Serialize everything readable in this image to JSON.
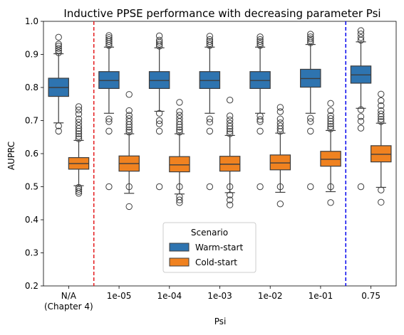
{
  "chart_data": {
    "type": "box",
    "title": "Inductive PPSE performance with decreasing parameter Psi",
    "xlabel": "Psi",
    "ylabel": "AUPRC",
    "ylim": [
      0.2,
      1.0
    ],
    "yticks": [
      "0.2",
      "0.3",
      "0.4",
      "0.5",
      "0.6",
      "0.7",
      "0.8",
      "0.9",
      "1.0"
    ],
    "categories": [
      {
        "line1": "N/A",
        "line2": "(Chapter 4)"
      },
      {
        "line1": "1e-05",
        "line2": ""
      },
      {
        "line1": "1e-04",
        "line2": ""
      },
      {
        "line1": "1e-03",
        "line2": ""
      },
      {
        "line1": "1e-02",
        "line2": ""
      },
      {
        "line1": "1e-01",
        "line2": ""
      },
      {
        "line1": "0.75",
        "line2": ""
      }
    ],
    "legend": {
      "title": "Scenario",
      "placement": "lower-center"
    },
    "series": [
      {
        "name": "Warm-start",
        "color": "#2e74b0",
        "boxes": [
          {
            "q1": 0.773,
            "median": 0.8,
            "q3": 0.828,
            "whislo": 0.693,
            "whishi": 0.902,
            "fliers_low": [
              0.684,
              0.668
            ],
            "fliers_high": [
              0.905,
              0.912,
              0.918,
              0.925,
              0.931,
              0.952
            ]
          },
          {
            "q1": 0.797,
            "median": 0.821,
            "q3": 0.848,
            "whislo": 0.722,
            "whishi": 0.922,
            "fliers_low": [
              0.705,
              0.697,
              0.668,
              0.5
            ],
            "fliers_high": [
              0.927,
              0.933,
              0.939,
              0.945,
              0.951,
              0.957
            ]
          },
          {
            "q1": 0.797,
            "median": 0.821,
            "q3": 0.848,
            "whislo": 0.728,
            "whishi": 0.92,
            "fliers_low": [
              0.722,
              0.7,
              0.69,
              0.668,
              0.5
            ],
            "fliers_high": [
              0.925,
              0.931,
              0.937,
              0.943,
              0.956
            ]
          },
          {
            "q1": 0.797,
            "median": 0.821,
            "q3": 0.848,
            "whislo": 0.722,
            "whishi": 0.922,
            "fliers_low": [
              0.705,
              0.695,
              0.668,
              0.5
            ],
            "fliers_high": [
              0.927,
              0.933,
              0.939,
              0.945,
              0.955
            ]
          },
          {
            "q1": 0.797,
            "median": 0.821,
            "q3": 0.848,
            "whislo": 0.722,
            "whishi": 0.922,
            "fliers_low": [
              0.714,
              0.703,
              0.697,
              0.668,
              0.5
            ],
            "fliers_high": [
              0.927,
              0.933,
              0.939,
              0.945,
              0.953
            ]
          },
          {
            "q1": 0.801,
            "median": 0.827,
            "q3": 0.855,
            "whislo": 0.722,
            "whishi": 0.93,
            "fliers_low": [
              0.707,
              0.697,
              0.668,
              0.5
            ],
            "fliers_high": [
              0.935,
              0.941,
              0.947,
              0.953,
              0.961
            ]
          },
          {
            "q1": 0.813,
            "median": 0.838,
            "q3": 0.865,
            "whislo": 0.737,
            "whishi": 0.938,
            "fliers_low": [
              0.733,
              0.712,
              0.698,
              0.677,
              0.5
            ],
            "fliers_high": [
              0.943,
              0.951,
              0.962,
              0.972
            ]
          }
        ]
      },
      {
        "name": "Cold-start",
        "color": "#f08220",
        "boxes": [
          {
            "q1": 0.553,
            "median": 0.57,
            "q3": 0.588,
            "whislo": 0.503,
            "whishi": 0.64,
            "fliers_low": [
              0.498,
              0.492,
              0.486,
              0.48
            ],
            "fliers_high": [
              0.645,
              0.652,
              0.66,
              0.668,
              0.676,
              0.685,
              0.695,
              0.705,
              0.72,
              0.732,
              0.742
            ]
          },
          {
            "q1": 0.547,
            "median": 0.57,
            "q3": 0.593,
            "whislo": 0.48,
            "whishi": 0.66,
            "fliers_low": [
              0.5,
              0.44
            ],
            "fliers_high": [
              0.665,
              0.672,
              0.68,
              0.688,
              0.697,
              0.706,
              0.716,
              0.73,
              0.779
            ]
          },
          {
            "q1": 0.545,
            "median": 0.566,
            "q3": 0.591,
            "whislo": 0.478,
            "whishi": 0.66,
            "fliers_low": [
              0.5,
              0.47,
              0.46,
              0.452
            ],
            "fliers_high": [
              0.665,
              0.672,
              0.68,
              0.688,
              0.697,
              0.706,
              0.716,
              0.727,
              0.755
            ]
          },
          {
            "q1": 0.547,
            "median": 0.568,
            "q3": 0.592,
            "whislo": 0.482,
            "whishi": 0.655,
            "fliers_low": [
              0.5,
              0.475,
              0.46,
              0.445
            ],
            "fliers_high": [
              0.66,
              0.667,
              0.675,
              0.683,
              0.692,
              0.702,
              0.714,
              0.762
            ]
          },
          {
            "q1": 0.551,
            "median": 0.572,
            "q3": 0.596,
            "whislo": 0.483,
            "whishi": 0.662,
            "fliers_low": [
              0.5,
              0.448
            ],
            "fliers_high": [
              0.667,
              0.675,
              0.684,
              0.693,
              0.705,
              0.727,
              0.74
            ]
          },
          {
            "q1": 0.562,
            "median": 0.583,
            "q3": 0.607,
            "whislo": 0.485,
            "whishi": 0.67,
            "fliers_low": [
              0.5,
              0.452
            ],
            "fliers_high": [
              0.675,
              0.682,
              0.69,
              0.698,
              0.706,
              0.715,
              0.73,
              0.752
            ]
          },
          {
            "q1": 0.575,
            "median": 0.598,
            "q3": 0.624,
            "whislo": 0.498,
            "whishi": 0.692,
            "fliers_low": [
              0.49,
              0.453
            ],
            "fliers_high": [
              0.697,
              0.704,
              0.712,
              0.72,
              0.73,
              0.745,
              0.76,
              0.78
            ]
          }
        ]
      }
    ],
    "reference_lines": [
      {
        "between": [
          0,
          1
        ],
        "color": "#e41a1c",
        "style": "dashed"
      },
      {
        "between": [
          5,
          6
        ],
        "color": "#0000ee",
        "style": "dashed"
      }
    ]
  }
}
